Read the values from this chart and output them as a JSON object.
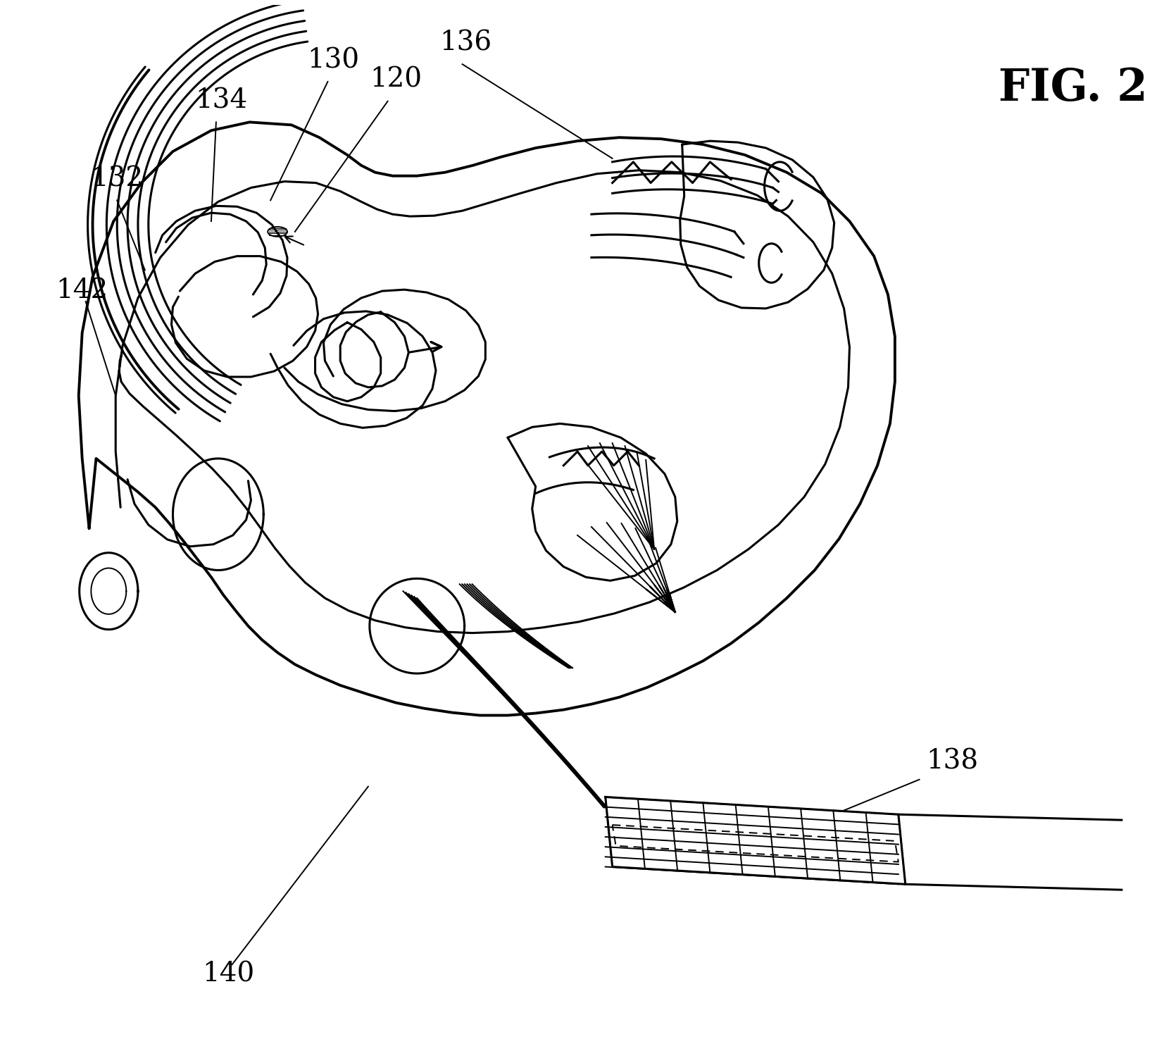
{
  "fig_label": "FIG. 2",
  "background_color": "#ffffff",
  "line_color": "#000000",
  "lw_main": 2.2,
  "lw_thin": 1.4,
  "lw_thick": 2.8
}
